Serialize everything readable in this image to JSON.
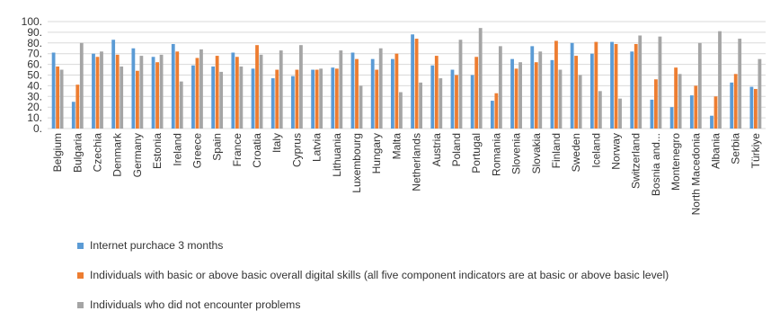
{
  "chart_data": {
    "type": "bar",
    "categories": [
      "Belgium",
      "Bulgaria",
      "Czechia",
      "Denmark",
      "Germany",
      "Estonia",
      "Ireland",
      "Greece",
      "Spain",
      "France",
      "Croatia",
      "Italy",
      "Cyprus",
      "Latvia",
      "Lithuania",
      "Luxembourg",
      "Hungary",
      "Malta",
      "Netherlands",
      "Austria",
      "Poland",
      "Portugal",
      "Romania",
      "Slovenia",
      "Slovakia",
      "Finland",
      "Sweden",
      "Iceland",
      "Norway",
      "Switzerland",
      "Bosnia and...",
      "Montenegro",
      "North Macedonia",
      "Albania",
      "Serbia",
      "Türkiye"
    ],
    "series": [
      {
        "name": "Internet purchace 3 months",
        "color": "#5B9BD5",
        "values": [
          71,
          25,
          70,
          83,
          75,
          67,
          79,
          59,
          58,
          71,
          56,
          47,
          49,
          55,
          57,
          71,
          65,
          65,
          88,
          59,
          55,
          50,
          26,
          65,
          77,
          64,
          80,
          70,
          81,
          72,
          27,
          20,
          31,
          12,
          43,
          39
        ]
      },
      {
        "name": "Individuals with basic or above basic overall digital skills (all five component indicators are at basic or above basic level)",
        "color": "#ED7D31",
        "values": [
          58,
          41,
          67,
          69,
          54,
          62,
          72,
          66,
          68,
          67,
          78,
          55,
          55,
          55,
          56,
          65,
          55,
          70,
          84,
          68,
          50,
          67,
          33,
          56,
          62,
          82,
          68,
          81,
          79,
          79,
          46,
          57,
          40,
          30,
          51,
          37
        ]
      },
      {
        "name": "Individuals who did not encounter problems",
        "color": "#A5A5A5",
        "values": [
          55,
          80,
          72,
          58,
          68,
          69,
          44,
          74,
          53,
          58,
          69,
          73,
          78,
          56,
          73,
          40,
          75,
          34,
          43,
          47,
          83,
          94,
          77,
          62,
          72,
          55,
          50,
          35,
          28,
          87,
          86,
          51,
          80,
          91,
          84,
          65
        ]
      }
    ],
    "yticks": [
      "0.",
      "10.",
      "20.",
      "30.",
      "40.",
      "50.",
      "60.",
      "70.",
      "80.",
      "90.",
      "100."
    ],
    "ylim": [
      0,
      100
    ],
    "grid": true,
    "legend_position": "bottom"
  }
}
